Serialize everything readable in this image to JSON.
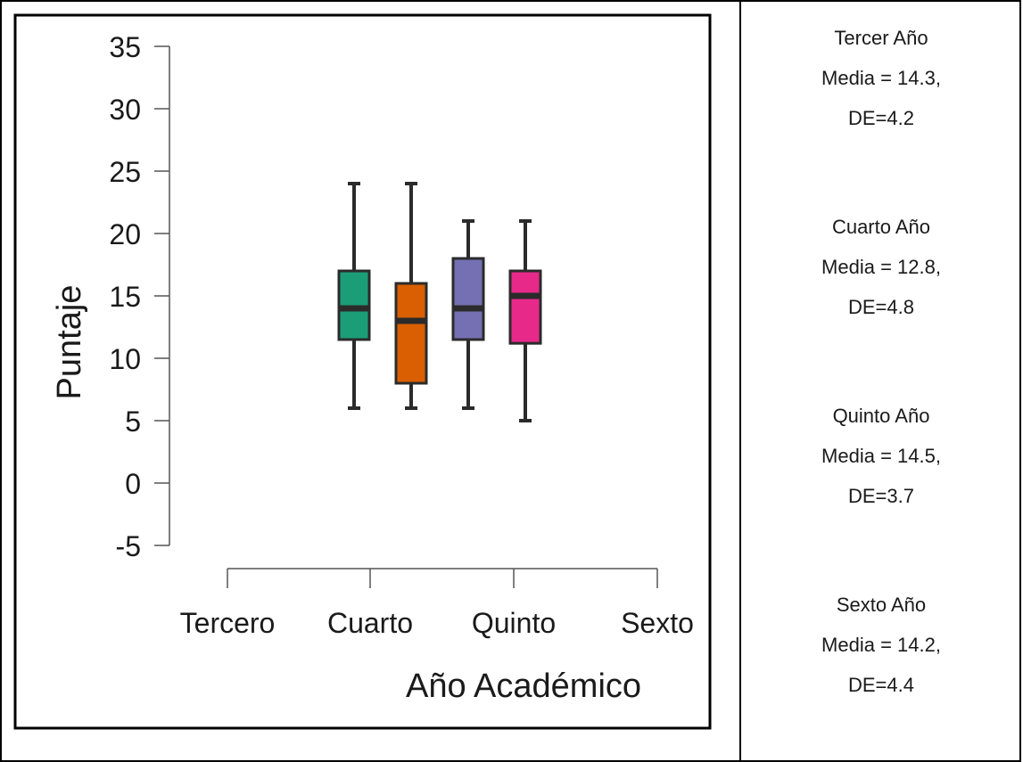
{
  "chart_data": {
    "type": "box",
    "ylabel": "Puntaje",
    "xlabel": "Año Académico",
    "ylim": [
      -5,
      35
    ],
    "yticks": [
      35,
      30,
      25,
      20,
      15,
      10,
      5,
      0,
      -5
    ],
    "categories": [
      "Tercero",
      "Cuarto",
      "Quinto",
      "Sexto"
    ],
    "boxes": [
      {
        "min": 6,
        "q1": 11.5,
        "median": 14,
        "q3": 17,
        "max": 24,
        "color": "#1b9e77"
      },
      {
        "min": 6,
        "q1": 8,
        "median": 13,
        "q3": 16,
        "max": 24,
        "color": "#d95f02"
      },
      {
        "min": 6,
        "q1": 11.5,
        "median": 14,
        "q3": 18,
        "max": 21,
        "color": "#7570b3"
      },
      {
        "min": 5,
        "q1": 11.2,
        "median": 15,
        "q3": 17,
        "max": 21,
        "color": "#e7298a"
      }
    ]
  },
  "stats": [
    {
      "title": "Tercer Año",
      "mean": "Media = 14.3,",
      "sd": "DE=4.2"
    },
    {
      "title": "Cuarto Año",
      "mean": "Media = 12.8,",
      "sd": "DE=4.8"
    },
    {
      "title": "Quinto Año",
      "mean": "Media = 14.5,",
      "sd": "DE=3.7"
    },
    {
      "title": "Sexto Año",
      "mean": "Media = 14.2,",
      "sd": "DE=4.4"
    }
  ]
}
